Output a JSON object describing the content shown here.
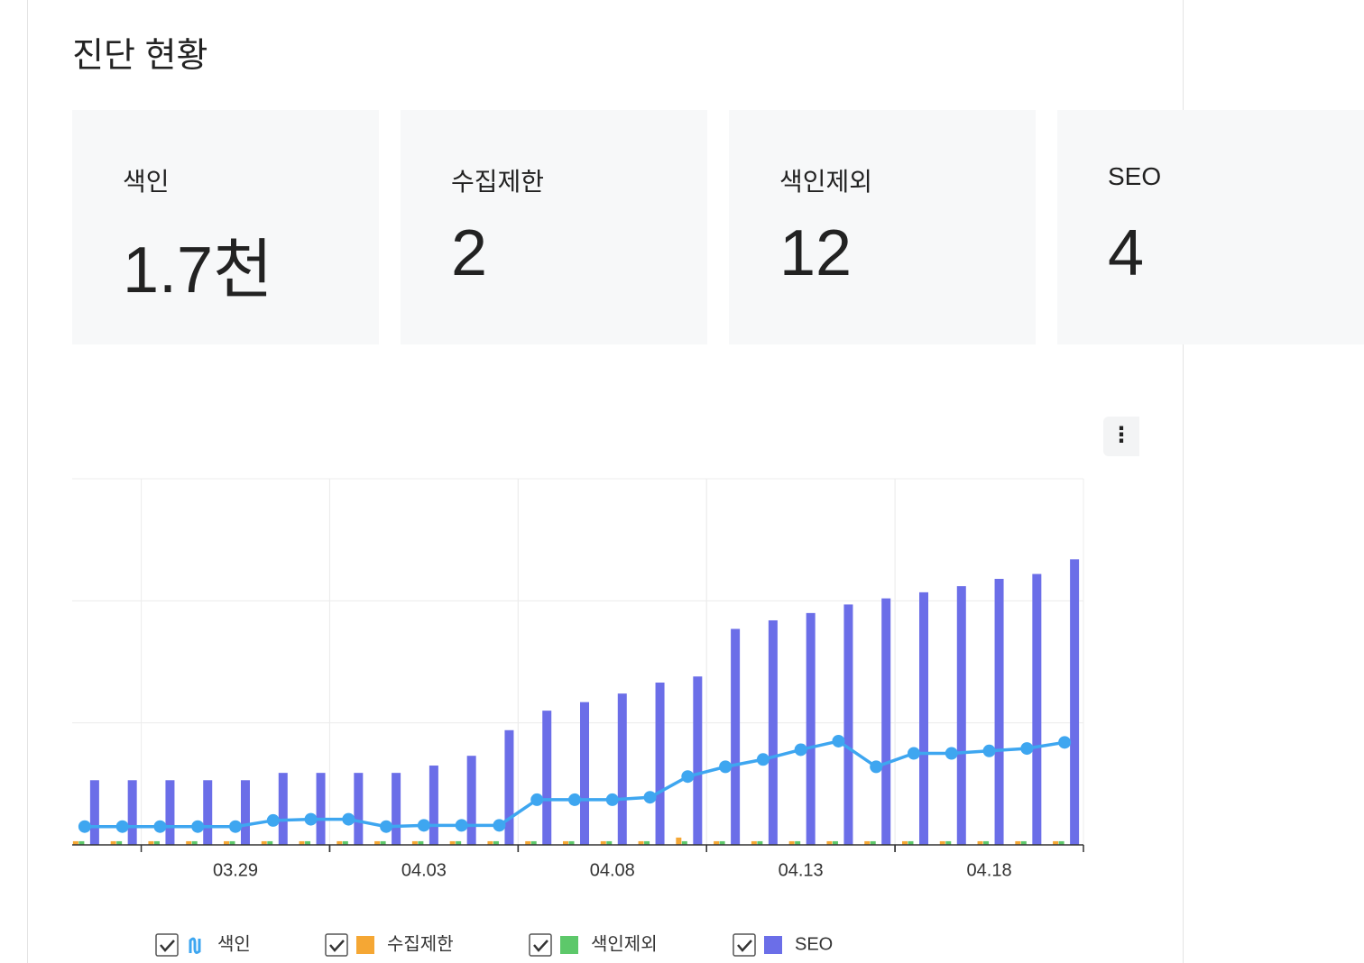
{
  "header": {
    "title": "진단 현황"
  },
  "cards": [
    {
      "label": "색인",
      "value": "1.7천"
    },
    {
      "label": "수집제한",
      "value": "2"
    },
    {
      "label": "색인제외",
      "value": "12"
    },
    {
      "label": "SEO",
      "value": "4"
    }
  ],
  "chart_data": {
    "type": "bar",
    "categories": [
      null,
      null,
      null,
      null,
      "03.29",
      null,
      null,
      null,
      null,
      "04.03",
      null,
      null,
      null,
      null,
      "04.08",
      null,
      null,
      null,
      null,
      "04.13",
      null,
      null,
      null,
      null,
      "04.18",
      null,
      null
    ],
    "ylim": [
      0,
      3
    ],
    "yticks": [
      0,
      1,
      2,
      3
    ],
    "grid": true,
    "series": [
      {
        "name": "색인",
        "type": "line",
        "color": "#3ea6f0",
        "values": [
          0.15,
          0.15,
          0.15,
          0.15,
          0.15,
          0.2,
          0.21,
          0.21,
          0.15,
          0.16,
          0.16,
          0.16,
          0.37,
          0.37,
          0.37,
          0.39,
          0.56,
          0.64,
          0.7,
          0.78,
          0.85,
          0.64,
          0.75,
          0.75,
          0.77,
          0.79,
          0.84
        ]
      },
      {
        "name": "수집제한",
        "type": "bar",
        "color": "#f5a734",
        "values": [
          0.03,
          0.03,
          0.03,
          0.03,
          0.03,
          0.03,
          0.03,
          0.03,
          0.03,
          0.03,
          0.03,
          0.03,
          0.03,
          0.03,
          0.03,
          0.03,
          0.06,
          0.03,
          0.03,
          0.03,
          0.03,
          0.03,
          0.03,
          0.03,
          0.03,
          0.03,
          0.03
        ]
      },
      {
        "name": "색인제외",
        "type": "bar",
        "color": "#5dc86a",
        "values": [
          0.03,
          0.03,
          0.03,
          0.03,
          0.03,
          0.03,
          0.03,
          0.03,
          0.03,
          0.03,
          0.03,
          0.03,
          0.03,
          0.03,
          0.03,
          0.03,
          0.03,
          0.03,
          0.03,
          0.03,
          0.03,
          0.03,
          0.03,
          0.03,
          0.03,
          0.03,
          0.03
        ]
      },
      {
        "name": "SEO",
        "type": "bar",
        "color": "#6b6ee8",
        "values": [
          0.53,
          0.53,
          0.53,
          0.53,
          0.53,
          0.59,
          0.59,
          0.59,
          0.59,
          0.65,
          0.73,
          0.94,
          1.1,
          1.17,
          1.24,
          1.33,
          1.38,
          1.77,
          1.84,
          1.9,
          1.97,
          2.02,
          2.07,
          2.12,
          2.18,
          2.22,
          2.34
        ]
      }
    ]
  }
}
